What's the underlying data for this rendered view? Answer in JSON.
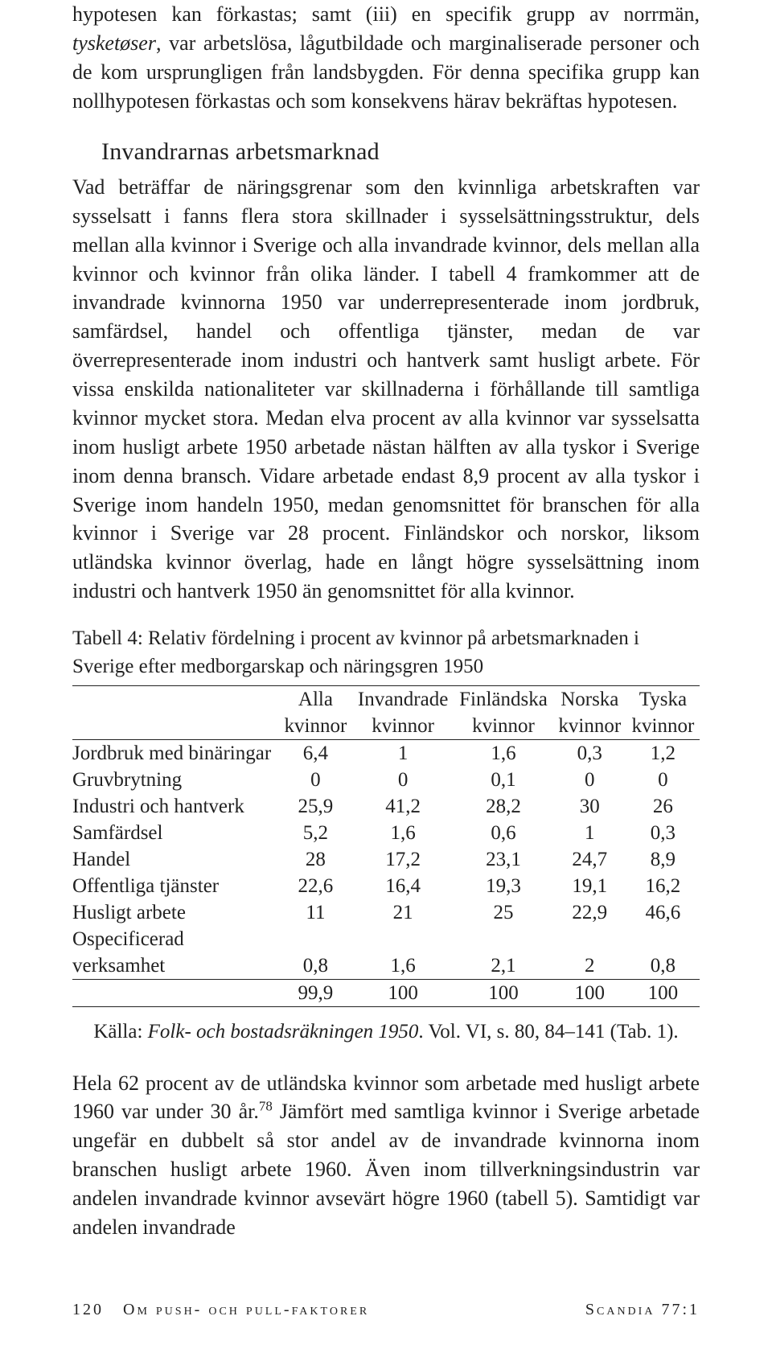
{
  "paragraph1_leading": "hypotesen kan förkastas; samt (iii) en specifik grupp av norrmän, ",
  "paragraph1_italic": "tysketøser",
  "paragraph1_trailing": ", var arbetslösa, lågutbildade och marginaliserade personer och de kom ursprungligen från landsbygden. För denna specifika grupp kan nollhypotesen förkastas och som konsekvens härav bekräftas hypotesen.",
  "heading": "Invandrarnas arbetsmarknad",
  "paragraph2": "Vad beträffar de näringsgrenar som den kvinnliga arbetskraften var sysselsatt i fanns flera stora skillnader i sysselsättningsstruktur, dels mellan alla kvinnor i Sverige och alla invandrade kvinnor, dels mellan alla kvinnor och kvinnor från olika länder. I tabell 4 framkommer att de invandrade kvinnorna 1950 var underrepresenterade inom jordbruk, samfärdsel, handel och offentliga tjänster, medan de var överrepresenterade inom industri och hantverk samt husligt arbete. För vissa enskilda nationaliteter var skillnaderna i förhållande till samtliga kvinnor mycket stora. Medan elva procent av alla kvinnor var sysselsatta inom husligt arbete 1950 arbetade nästan hälften av alla tyskor i Sverige inom denna bransch. Vidare arbetade endast 8,9 procent av alla tyskor i Sverige inom handeln 1950, medan genomsnittet för branschen för alla kvinnor i Sverige var 28 procent. Finländskor och norskor, liksom utländska kvinnor överlag, hade en långt högre sysselsättning inom industri och hantverk 1950 än genomsnittet för alla kvinnor.",
  "table": {
    "caption": "Tabell 4: Relativ fördelning i procent av kvinnor på arbetsmarknaden i Sverige efter medborgarskap och näringsgren 1950",
    "header_line1": [
      "",
      "Alla",
      "Invandrade",
      "Finländska",
      "Norska",
      "Tyska"
    ],
    "header_line2": [
      "",
      "kvinnor",
      "kvinnor",
      "kvinnor",
      "kvinnor",
      "kvinnor"
    ],
    "rows": [
      {
        "label": "Jordbruk med binäringar",
        "cells": [
          "6,4",
          "1",
          "1,6",
          "0,3",
          "1,2"
        ]
      },
      {
        "label": "Gruvbrytning",
        "cells": [
          "0",
          "0",
          "0,1",
          "0",
          "0"
        ]
      },
      {
        "label": "Industri och hantverk",
        "cells": [
          "25,9",
          "41,2",
          "28,2",
          "30",
          "26"
        ]
      },
      {
        "label": "Samfärdsel",
        "cells": [
          "5,2",
          "1,6",
          "0,6",
          "1",
          "0,3"
        ]
      },
      {
        "label": "Handel",
        "cells": [
          "28",
          "17,2",
          "23,1",
          "24,7",
          "8,9"
        ]
      },
      {
        "label": "Offentliga tjänster",
        "cells": [
          "22,6",
          "16,4",
          "19,3",
          "19,1",
          "16,2"
        ]
      },
      {
        "label": "Husligt arbete",
        "cells": [
          "11",
          "21",
          "25",
          "22,9",
          "46,6"
        ]
      }
    ],
    "ospec_label": "Ospecificerad verksamhet",
    "ospec_cells": [
      "0,8",
      "1,6",
      "2,1",
      "2",
      "0,8"
    ],
    "total": [
      "99,9",
      "100",
      "100",
      "100",
      "100"
    ]
  },
  "source_prefix": "Källa: ",
  "source_italic": "Folk- och bostadsräkningen 1950",
  "source_suffix": ". Vol. VI, s. 80, 84–141 (Tab. 1).",
  "paragraph3_pre": "Hela 62 procent av de utländska kvinnor som arbetade med husligt arbete 1960 var under 30 år.",
  "paragraph3_footnote": "78",
  "paragraph3_post": " Jämfört med samtliga kvinnor i Sverige arbetade ungefär en dubbelt så stor andel av de invandrade kvinnorna inom branschen husligt arbete 1960. Även inom tillverkningsindustrin var andelen invandrade kvinnor avsevärt högre 1960 (tabell 5). Samtidigt var andelen invandrade",
  "footer_left_page": "120",
  "footer_left_title": "Om push- och pull-faktorer",
  "footer_right": "Scandia 77:1"
}
